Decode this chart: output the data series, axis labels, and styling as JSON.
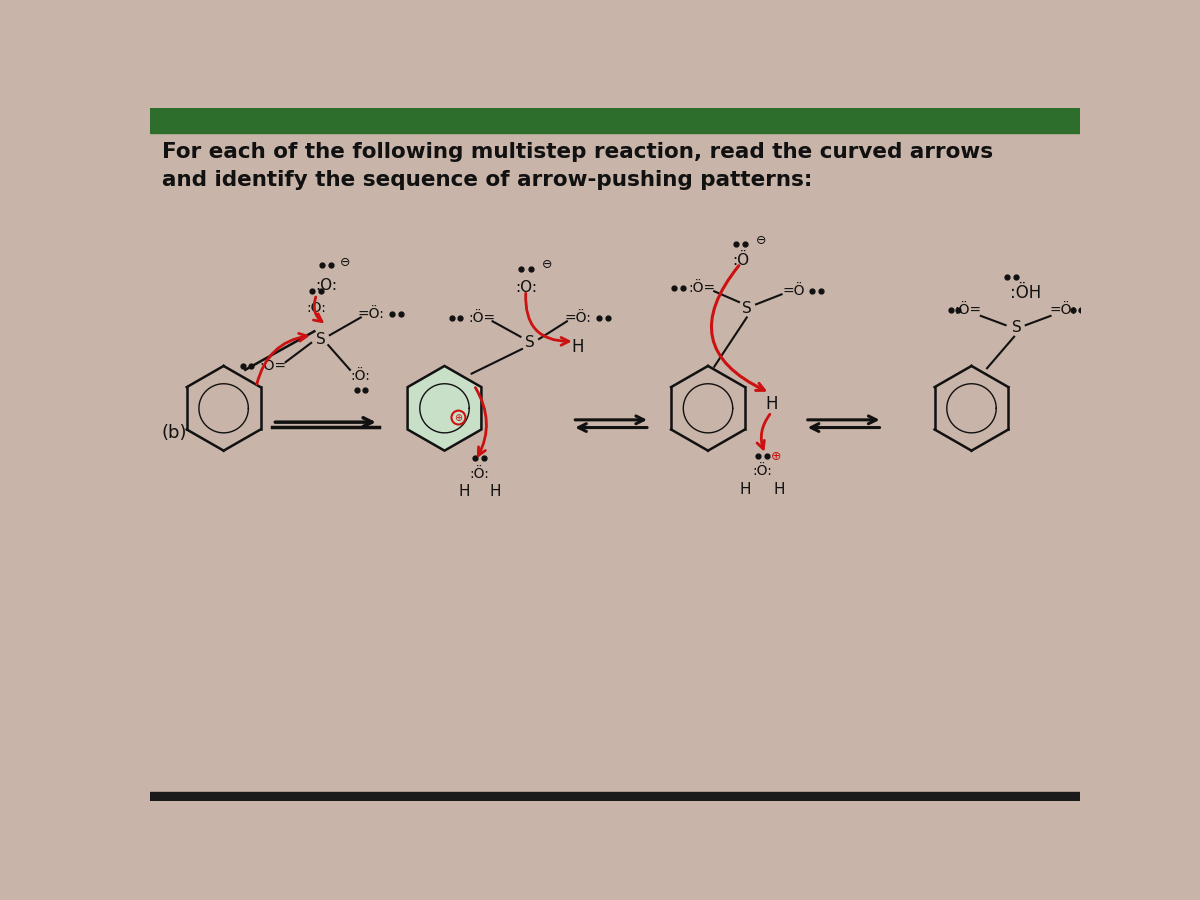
{
  "bg": "#c8b4a8",
  "top_bar": "#2d6e2d",
  "bot_bar": "#1a1a1a",
  "tc": "#111111",
  "rc": "#cc1111",
  "title1": "For each of the following multistep reaction, read the curved arrows",
  "title2": "and identify the sequence of arrow-pushing patterns:",
  "label_b": "(b)",
  "fs_title": 15.5,
  "fs_chem": 10.5,
  "fs_small": 8.5,
  "fs_tiny": 7.0
}
